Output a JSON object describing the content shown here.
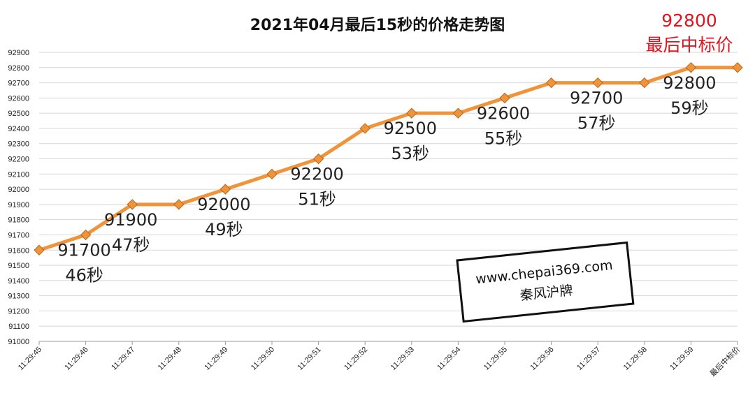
{
  "chart_data": {
    "type": "line",
    "title": "2021年04月最后15秒的价格走势图",
    "categories": [
      "11:29:45",
      "11:29:46",
      "11:29:47",
      "11:29:48",
      "11:29:49",
      "11:29:50",
      "11:29:51",
      "11:29:52",
      "11:29:53",
      "11:29:54",
      "11:29:55",
      "11:29:56",
      "11:29:57",
      "11:29:58",
      "11:29:59",
      "最后中标价"
    ],
    "values": [
      91600,
      91700,
      91900,
      91900,
      92000,
      92100,
      92200,
      92400,
      92500,
      92500,
      92600,
      92700,
      92700,
      92700,
      92800,
      92800
    ],
    "ylim": [
      91000,
      92900
    ],
    "yticks": [
      91000,
      91100,
      91200,
      91300,
      91400,
      91500,
      91600,
      91700,
      91800,
      91900,
      92000,
      92100,
      92200,
      92300,
      92400,
      92500,
      92600,
      92700,
      92800,
      92900
    ],
    "grid": true,
    "line_color": "#f0943c",
    "marker_color": "#f0943c",
    "annotations": [
      {
        "category": "11:29:46",
        "price": "91700",
        "time": "46秒"
      },
      {
        "category": "11:29:47",
        "price": "91900",
        "time": "47秒"
      },
      {
        "category": "11:29:49",
        "price": "92000",
        "time": "49秒"
      },
      {
        "category": "11:29:51",
        "price": "92200",
        "time": "51秒"
      },
      {
        "category": "11:29:53",
        "price": "92500",
        "time": "53秒"
      },
      {
        "category": "11:29:55",
        "price": "92600",
        "time": "55秒"
      },
      {
        "category": "11:29:57",
        "price": "92700",
        "time": "57秒"
      },
      {
        "category": "11:29:59",
        "price": "92800",
        "time": "59秒"
      }
    ],
    "final_annotation": {
      "price": "92800",
      "label": "最后中标价",
      "color": "#e0141e"
    }
  },
  "watermark": {
    "url": "www.chepai369.com",
    "name": "秦风沪牌"
  }
}
